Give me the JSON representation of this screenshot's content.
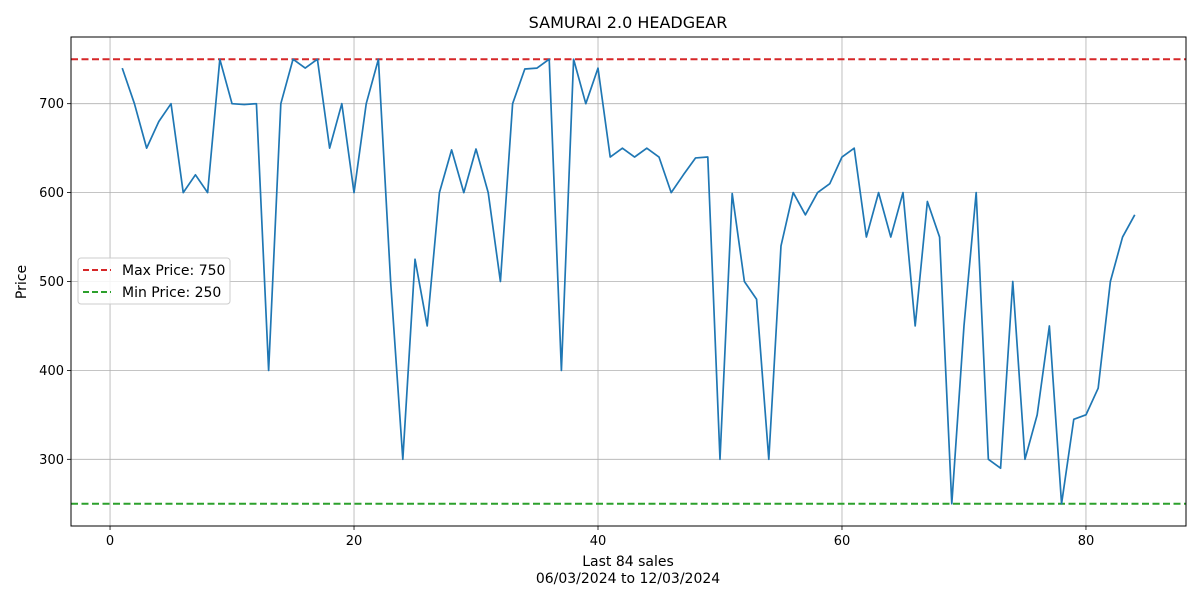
{
  "chart_data": {
    "type": "line",
    "title": "SAMURAI 2.0 HEADGEAR",
    "xlabel": "Last 84 sales",
    "xlabel_sub": "06/03/2024 to 12/03/2024",
    "ylabel": "Price",
    "xlim": [
      -3.2,
      88.2
    ],
    "ylim": [
      225,
      775
    ],
    "xticks": [
      0,
      20,
      40,
      60,
      80
    ],
    "yticks": [
      300,
      400,
      500,
      600,
      700
    ],
    "grid": true,
    "legend_position": "center-left",
    "series": [
      {
        "name": "",
        "color": "#1f77b4",
        "x": [
          1,
          2,
          3,
          4,
          5,
          6,
          7,
          8,
          9,
          10,
          11,
          12,
          13,
          14,
          15,
          16,
          17,
          18,
          19,
          20,
          21,
          22,
          23,
          24,
          25,
          26,
          27,
          28,
          29,
          30,
          31,
          32,
          33,
          34,
          35,
          36,
          37,
          38,
          39,
          40,
          41,
          42,
          43,
          44,
          45,
          46,
          47,
          48,
          49,
          50,
          51,
          52,
          53,
          54,
          55,
          56,
          57,
          58,
          59,
          60,
          61,
          62,
          63,
          64,
          65,
          66,
          67,
          68,
          69,
          70,
          71,
          72,
          73,
          74,
          75,
          76,
          77,
          78,
          79,
          80,
          81,
          82,
          83,
          84
        ],
        "y": [
          740,
          700,
          650,
          680,
          700,
          600,
          620,
          600,
          750,
          700,
          699,
          700,
          400,
          700,
          750,
          740,
          750,
          650,
          700,
          600,
          700,
          750,
          500,
          300,
          525,
          450,
          600,
          648,
          600,
          649,
          600,
          500,
          700,
          739,
          740,
          750,
          400,
          750,
          700,
          740,
          640,
          650,
          640,
          650,
          640,
          600,
          620,
          639,
          640,
          300,
          599,
          500,
          480,
          300,
          540,
          600,
          575,
          600,
          610,
          640,
          650,
          550,
          600,
          550,
          600,
          450,
          590,
          550,
          250,
          450,
          600,
          300,
          290,
          500,
          300,
          350,
          450,
          250,
          345,
          350,
          380,
          500,
          550,
          575
        ]
      }
    ],
    "reference_lines": [
      {
        "name": "Max Price: 750",
        "value": 750,
        "color": "#d62728",
        "style": "dashed"
      },
      {
        "name": "Min Price: 250",
        "value": 250,
        "color": "#2ca02c",
        "style": "dashed"
      }
    ]
  }
}
